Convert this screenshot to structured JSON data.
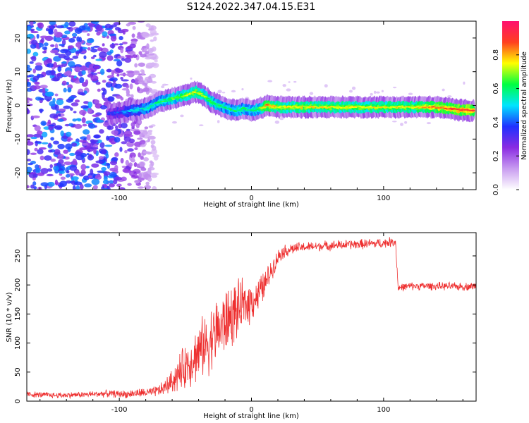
{
  "title": "S124.2022.347.04.15.E31",
  "chart_data": [
    {
      "type": "heatmap",
      "title": "",
      "xlabel": "Height of straight line (km)",
      "ylabel": "Frequency (Hz)",
      "xlim": [
        -170,
        170
      ],
      "ylim": [
        -25,
        25
      ],
      "xticks": [
        -100,
        0,
        100
      ],
      "yticks": [
        -20,
        -10,
        0,
        10,
        20
      ],
      "colorbar": {
        "label": "Normalized spectral amplitude",
        "range": [
          0.0,
          1.0
        ],
        "ticks": [
          "0.0",
          "0.2",
          "0.4",
          "0.6",
          "0.8"
        ],
        "colors": [
          "#ffffff",
          "#c89cf0",
          "#8a2be2",
          "#2030ff",
          "#00e5ff",
          "#00ff40",
          "#ffff00",
          "#ff4020",
          "#ff1070"
        ]
      },
      "noise_region_x": [
        -170,
        -80
      ],
      "signal_track": {
        "x": [
          -108,
          -98,
          -90,
          -80,
          -70,
          -60,
          -50,
          -42,
          -36,
          -30,
          -24,
          -18,
          -12,
          -6,
          0,
          6,
          12,
          20,
          40,
          60,
          80,
          100,
          120,
          140,
          160,
          168
        ],
        "y": [
          -2.5,
          -2.0,
          -1.5,
          -1.0,
          1.0,
          2.0,
          3.0,
          4.0,
          3.0,
          1.0,
          0.0,
          -1.0,
          -1.5,
          -1.0,
          -1.5,
          -1.0,
          0.0,
          -0.5,
          -0.5,
          -0.5,
          -0.5,
          -0.5,
          -0.5,
          -0.5,
          -1.5,
          -1.5
        ],
        "amplitude": [
          0.35,
          0.4,
          0.5,
          0.55,
          0.6,
          0.65,
          0.7,
          0.75,
          0.7,
          0.65,
          0.6,
          0.6,
          0.6,
          0.6,
          0.6,
          0.65,
          0.85,
          0.75,
          0.75,
          0.75,
          0.75,
          0.75,
          0.75,
          0.85,
          0.9,
          0.9
        ]
      }
    },
    {
      "type": "line",
      "title": "",
      "xlabel": "Height of straight line (km)",
      "ylabel": "SNR (10 * v/v)",
      "xlim": [
        -170,
        170
      ],
      "ylim": [
        0,
        290
      ],
      "xticks": [
        -100,
        0,
        100
      ],
      "yticks": [
        0,
        50,
        100,
        150,
        200,
        250
      ],
      "series": [
        {
          "color": "#ee3030",
          "x": [
            -170,
            -150,
            -130,
            -110,
            -95,
            -85,
            -75,
            -68,
            -62,
            -56,
            -50,
            -44,
            -38,
            -32,
            -26,
            -20,
            -14,
            -8,
            -2,
            4,
            10,
            16,
            22,
            30,
            40,
            60,
            80,
            100,
            109,
            111,
            120,
            140,
            160,
            170
          ],
          "y": [
            12,
            10,
            11,
            13,
            12,
            14,
            15,
            20,
            30,
            45,
            60,
            75,
            90,
            105,
            120,
            135,
            150,
            160,
            170,
            180,
            200,
            230,
            255,
            262,
            265,
            268,
            270,
            272,
            275,
            195,
            198,
            198,
            197,
            198
          ],
          "noise_amplitude": [
            6,
            6,
            6,
            7,
            8,
            9,
            10,
            14,
            20,
            35,
            45,
            55,
            60,
            65,
            70,
            70,
            65,
            55,
            45,
            35,
            30,
            20,
            15,
            12,
            10,
            10,
            10,
            10,
            10,
            8,
            8,
            8,
            8,
            8
          ]
        }
      ]
    }
  ]
}
